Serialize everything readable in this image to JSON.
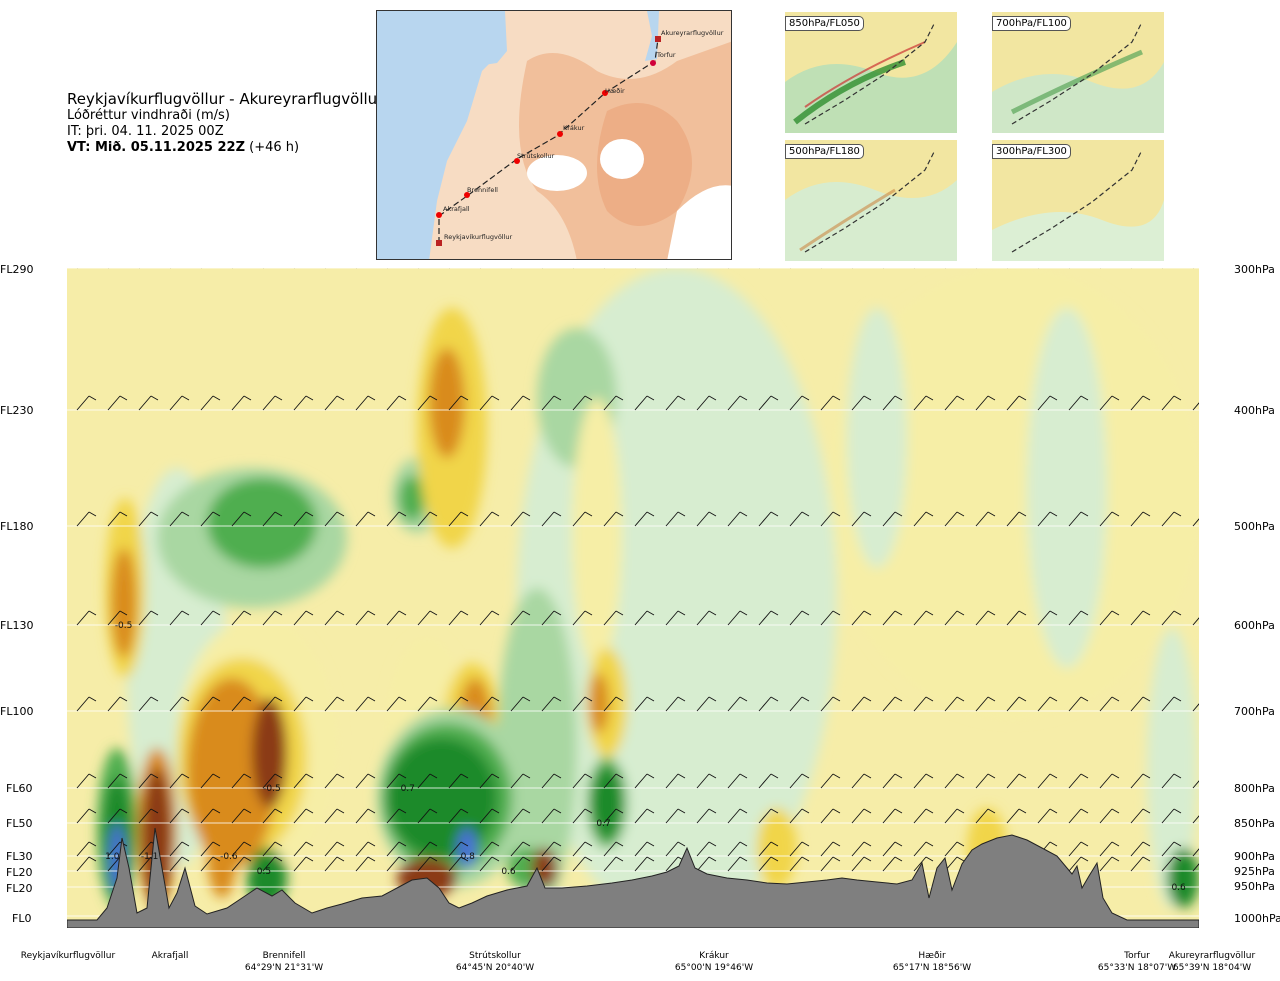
{
  "title": {
    "route": "Reykjavíkurflugvöllur - Akureyrarflugvöllur",
    "parameter": "Lóðréttur vindhraði (m/s)",
    "issue_time": "IT: þri. 04. 11. 2025 00Z",
    "valid_time_bold": "VT: Mið. 05.11.2025 22Z",
    "valid_time_offset": "(+46 h)"
  },
  "map": {
    "waypoints": [
      "Akureyrarflugvöllur",
      "Torfur",
      "Hæðir",
      "Krákur",
      "Strútskollur",
      "Brennifell",
      "Akrafjall",
      "Reykjavíkurflugvöllur"
    ]
  },
  "mini_maps": [
    {
      "label": "850hPa/FL050"
    },
    {
      "label": "700hPa/FL100"
    },
    {
      "label": "500hPa/FL180"
    },
    {
      "label": "300hPa/FL300"
    }
  ],
  "colors": {
    "strong_down": "#8b3a14",
    "mod_down": "#d98b1f",
    "weak_down": "#f1d54a",
    "very_weak_down": "#f6eea6",
    "neutral": "#ffffff",
    "very_weak_up": "#d7edd0",
    "weak_up": "#a9d7a2",
    "mod_up": "#4fae4f",
    "strong_up": "#1f8a2c",
    "very_strong_up": "#4a6fd6",
    "terrain": "#7f7f7f"
  },
  "chart_data": {
    "type": "heatmap",
    "title": "Lóðréttur vindhraði (m/s)",
    "y_levels_left": [
      "FL290",
      "FL230",
      "FL180",
      "FL130",
      "FL100",
      "FL60",
      "FL50",
      "FL30",
      "FL20",
      "FL20",
      "FL0"
    ],
    "y_levels_right": [
      "300hPa",
      "400hPa",
      "500hPa",
      "600hPa",
      "700hPa",
      "800hPa",
      "850hPa",
      "900hPa",
      "925hPa",
      "950hPa",
      "1000hPa"
    ],
    "pressure_hpa": [
      300,
      400,
      500,
      600,
      700,
      800,
      850,
      900,
      925,
      950,
      1000
    ],
    "locations": [
      {
        "name": "Reykjavíkurflugvöllur",
        "coord": "",
        "frac": 0.0
      },
      {
        "name": "Akrafjall",
        "coord": "",
        "frac": 0.092
      },
      {
        "name": "Brennifell",
        "coord": "64°29'N 21°31'W",
        "frac": 0.188
      },
      {
        "name": "Strútskollur",
        "coord": "64°45'N 20°40'W",
        "frac": 0.378
      },
      {
        "name": "Krákur",
        "coord": "65°00'N 19°46'W",
        "frac": 0.574
      },
      {
        "name": "Hæðir",
        "coord": "65°17'N 18°56'W",
        "frac": 0.766
      },
      {
        "name": "Torfur",
        "coord": "65°33'N 18°07'W",
        "frac": 0.938
      },
      {
        "name": "Akureyrarflugvöllur",
        "coord": "65°39'N 18°04'W",
        "frac": 1.0
      }
    ],
    "annotations": [
      {
        "text": "-0.5",
        "frac": 0.05,
        "p": 600
      },
      {
        "text": "1.0",
        "frac": 0.04,
        "p": 900
      },
      {
        "text": "-1.1",
        "frac": 0.073,
        "p": 900
      },
      {
        "text": "-0.6",
        "frac": 0.143,
        "p": 900
      },
      {
        "text": "-0.5",
        "frac": 0.181,
        "p": 800
      },
      {
        "text": "0.5",
        "frac": 0.174,
        "p": 925
      },
      {
        "text": "0.7",
        "frac": 0.301,
        "p": 800
      },
      {
        "text": "0.8",
        "frac": 0.354,
        "p": 900
      },
      {
        "text": "0.6",
        "frac": 0.39,
        "p": 925
      },
      {
        "text": "0.7",
        "frac": 0.474,
        "p": 850
      },
      {
        "text": "0.6",
        "frac": 0.982,
        "p": 950
      }
    ]
  }
}
